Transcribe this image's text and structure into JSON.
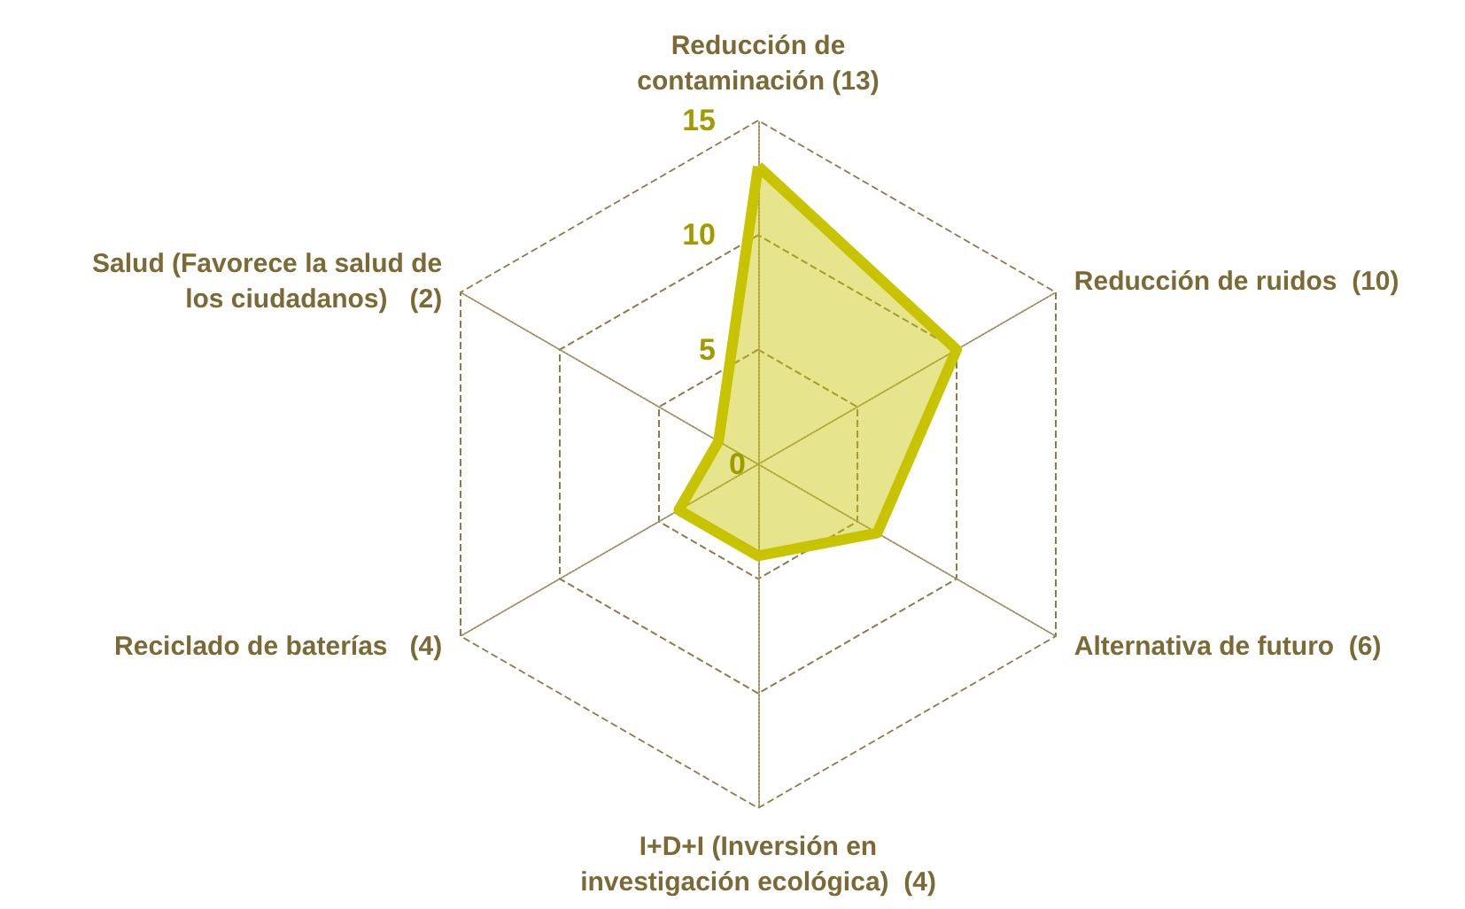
{
  "chart_data": {
    "type": "radar",
    "categories": [
      "Reducción de\ncontaminación (13)",
      "Reducción de ruidos  (10)",
      "Alternativa de futuro  (6)",
      "I+D+I (Inversión en\ninvestigación ecológica)  (4)",
      "Reciclado de baterías   (4)",
      "Salud (Favorece la salud de\nlos ciudadanos)   (2)"
    ],
    "series": [
      {
        "color": "#c8c400",
        "values": [
          13,
          10,
          6,
          4,
          4,
          2
        ]
      }
    ],
    "ylim": [
      0,
      15
    ],
    "yticks": [
      0,
      5,
      10,
      15
    ],
    "grid": true,
    "marker": "none"
  }
}
